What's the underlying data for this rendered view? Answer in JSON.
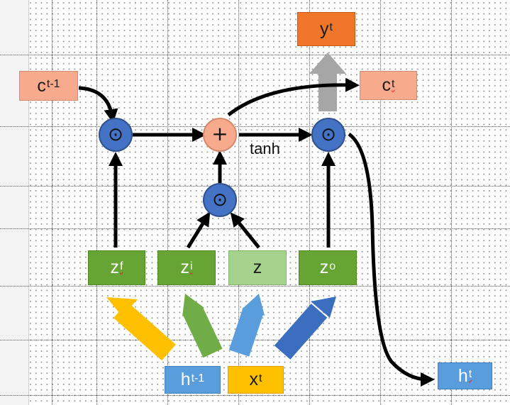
{
  "boxes": {
    "c_prev": {
      "base": "c",
      "sup": "t-1"
    },
    "y_t": {
      "base": "y",
      "sup": "t"
    },
    "c_t": {
      "base": "c",
      "sup": "t"
    },
    "z_f": {
      "base": "z",
      "sup": "f"
    },
    "z_i": {
      "base": "z",
      "sup": "i"
    },
    "z": {
      "base": "z",
      "sup": ""
    },
    "z_o": {
      "base": "z",
      "sup": "o"
    },
    "h_prev": {
      "base": "h",
      "sup": "t-1"
    },
    "x_t": {
      "base": "x",
      "sup": "t"
    },
    "h_t": {
      "base": "h",
      "sup": "t"
    }
  },
  "operators": {
    "multiply": "⊙",
    "add": "+"
  },
  "activation_label": "tanh",
  "colors": {
    "multiply_node": "#4472c4",
    "add_node": "#f8aa8c",
    "cell_box": "#f8aa8c",
    "output_box": "#f0762a",
    "gate_box": "#66a533",
    "input_box": "#a5d38e",
    "h_box": "#5a9ddc",
    "x_box": "#ffc000"
  }
}
